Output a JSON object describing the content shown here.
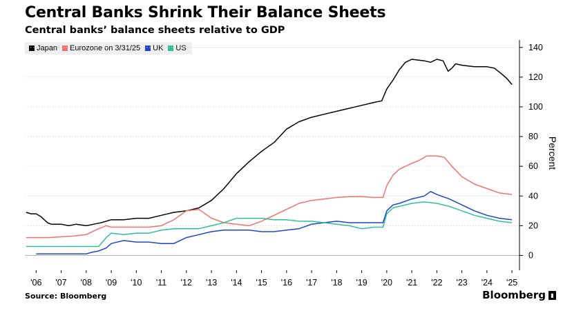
{
  "chart_data": {
    "type": "line",
    "title": "Central Banks Shrink Their Balance Sheets",
    "subtitle": "Central banks’ balance sheets relative to GDP",
    "ylabel": "Percent",
    "xlabel": "",
    "ylim": [
      -10,
      145
    ],
    "yticks": [
      0,
      20,
      40,
      60,
      80,
      100,
      120,
      140
    ],
    "xlim": [
      2005.55,
      2025.3
    ],
    "xticks": [
      {
        "label": "'06",
        "x": 2006.0
      },
      {
        "label": "'07",
        "x": 2007.0
      },
      {
        "label": "'08",
        "x": 2008.0
      },
      {
        "label": "'09",
        "x": 2009.0
      },
      {
        "label": "'10",
        "x": 2010.0
      },
      {
        "label": "'11",
        "x": 2011.0
      },
      {
        "label": "'12",
        "x": 2012.0
      },
      {
        "label": "'13",
        "x": 2013.0
      },
      {
        "label": "'14",
        "x": 2014.0
      },
      {
        "label": "'15",
        "x": 2015.0
      },
      {
        "label": "'16",
        "x": 2016.0
      },
      {
        "label": "'17",
        "x": 2017.0
      },
      {
        "label": "'18",
        "x": 2018.0
      },
      {
        "label": "'19",
        "x": 2019.0
      },
      {
        "label": "'20",
        "x": 2020.0
      },
      {
        "label": "'21",
        "x": 2021.0
      },
      {
        "label": "'22",
        "x": 2022.0
      },
      {
        "label": "'23",
        "x": 2023.0
      },
      {
        "label": "'24",
        "x": 2024.0
      },
      {
        "label": "'25",
        "x": 2025.0
      }
    ],
    "grid": true,
    "legend_position": "top-left",
    "source": "Source: Bloomberg",
    "brand": "Bloomberg",
    "series": [
      {
        "name": "Japan",
        "color": "#000000",
        "points": [
          [
            2005.6,
            29
          ],
          [
            2005.8,
            28
          ],
          [
            2006.0,
            28
          ],
          [
            2006.2,
            26
          ],
          [
            2006.45,
            22
          ],
          [
            2006.6,
            21
          ],
          [
            2007.0,
            21
          ],
          [
            2007.3,
            20
          ],
          [
            2007.6,
            21
          ],
          [
            2008.0,
            20
          ],
          [
            2008.3,
            21
          ],
          [
            2008.6,
            22
          ],
          [
            2009.0,
            24
          ],
          [
            2009.5,
            24
          ],
          [
            2010.0,
            25
          ],
          [
            2010.5,
            25
          ],
          [
            2011.0,
            27
          ],
          [
            2011.5,
            29
          ],
          [
            2012.0,
            30
          ],
          [
            2012.5,
            32
          ],
          [
            2013.0,
            37
          ],
          [
            2013.5,
            45
          ],
          [
            2014.0,
            55
          ],
          [
            2014.5,
            63
          ],
          [
            2015.0,
            70
          ],
          [
            2015.5,
            76
          ],
          [
            2016.0,
            85
          ],
          [
            2016.5,
            90
          ],
          [
            2017.0,
            93
          ],
          [
            2017.5,
            95
          ],
          [
            2018.0,
            97
          ],
          [
            2018.5,
            99
          ],
          [
            2019.0,
            101
          ],
          [
            2019.5,
            103
          ],
          [
            2019.8,
            104
          ],
          [
            2020.0,
            112
          ],
          [
            2020.25,
            118
          ],
          [
            2020.5,
            125
          ],
          [
            2020.75,
            130
          ],
          [
            2021.0,
            132
          ],
          [
            2021.5,
            131
          ],
          [
            2021.75,
            130
          ],
          [
            2022.0,
            132
          ],
          [
            2022.25,
            131
          ],
          [
            2022.45,
            124
          ],
          [
            2022.6,
            126
          ],
          [
            2022.75,
            129
          ],
          [
            2023.0,
            128
          ],
          [
            2023.5,
            127
          ],
          [
            2024.0,
            127
          ],
          [
            2024.3,
            126
          ],
          [
            2024.6,
            122
          ],
          [
            2024.8,
            119
          ],
          [
            2025.0,
            115
          ]
        ]
      },
      {
        "name": "Eurozone on 3/31/25",
        "color": "#f0736b",
        "points": [
          [
            2005.6,
            12
          ],
          [
            2006.0,
            12
          ],
          [
            2006.5,
            12
          ],
          [
            2007.0,
            12.5
          ],
          [
            2007.5,
            13
          ],
          [
            2008.0,
            14
          ],
          [
            2008.5,
            18
          ],
          [
            2008.8,
            20
          ],
          [
            2009.0,
            19
          ],
          [
            2009.5,
            19
          ],
          [
            2010.0,
            19
          ],
          [
            2010.5,
            19
          ],
          [
            2011.0,
            20
          ],
          [
            2011.5,
            24
          ],
          [
            2012.0,
            30
          ],
          [
            2012.5,
            31
          ],
          [
            2013.0,
            25
          ],
          [
            2013.5,
            22
          ],
          [
            2014.0,
            21
          ],
          [
            2014.5,
            20
          ],
          [
            2015.0,
            23
          ],
          [
            2015.5,
            27
          ],
          [
            2016.0,
            31
          ],
          [
            2016.5,
            35
          ],
          [
            2017.0,
            37
          ],
          [
            2017.5,
            38
          ],
          [
            2018.0,
            39
          ],
          [
            2018.5,
            39.5
          ],
          [
            2019.0,
            39.5
          ],
          [
            2019.5,
            39
          ],
          [
            2019.85,
            39
          ],
          [
            2020.0,
            47
          ],
          [
            2020.25,
            54
          ],
          [
            2020.5,
            58
          ],
          [
            2021.0,
            62
          ],
          [
            2021.3,
            64
          ],
          [
            2021.6,
            67
          ],
          [
            2022.0,
            67
          ],
          [
            2022.3,
            66
          ],
          [
            2022.6,
            60
          ],
          [
            2023.0,
            53
          ],
          [
            2023.5,
            48
          ],
          [
            2024.0,
            45
          ],
          [
            2024.5,
            42
          ],
          [
            2025.0,
            41
          ]
        ]
      },
      {
        "name": "UK",
        "color": "#2043c6",
        "points": [
          [
            2006.0,
            1
          ],
          [
            2006.5,
            1
          ],
          [
            2007.0,
            1
          ],
          [
            2007.5,
            1
          ],
          [
            2008.0,
            1
          ],
          [
            2008.2,
            2
          ],
          [
            2008.5,
            3
          ],
          [
            2008.8,
            5
          ],
          [
            2009.0,
            8
          ],
          [
            2009.5,
            10
          ],
          [
            2010.0,
            9
          ],
          [
            2010.5,
            9
          ],
          [
            2011.0,
            8
          ],
          [
            2011.5,
            8
          ],
          [
            2012.0,
            12
          ],
          [
            2012.5,
            14
          ],
          [
            2013.0,
            16
          ],
          [
            2013.5,
            17
          ],
          [
            2014.0,
            17
          ],
          [
            2014.5,
            17
          ],
          [
            2015.0,
            16
          ],
          [
            2015.5,
            16
          ],
          [
            2016.0,
            17
          ],
          [
            2016.5,
            18
          ],
          [
            2017.0,
            21
          ],
          [
            2017.5,
            22
          ],
          [
            2018.0,
            23
          ],
          [
            2018.5,
            22
          ],
          [
            2019.0,
            22
          ],
          [
            2019.5,
            22
          ],
          [
            2019.85,
            22
          ],
          [
            2020.0,
            30
          ],
          [
            2020.25,
            34
          ],
          [
            2020.5,
            35
          ],
          [
            2021.0,
            38
          ],
          [
            2021.5,
            40
          ],
          [
            2021.75,
            43
          ],
          [
            2022.0,
            41
          ],
          [
            2022.5,
            38
          ],
          [
            2023.0,
            34
          ],
          [
            2023.5,
            30
          ],
          [
            2024.0,
            27
          ],
          [
            2024.5,
            25
          ],
          [
            2025.0,
            24
          ]
        ]
      },
      {
        "name": "US",
        "color": "#2bbf9a",
        "points": [
          [
            2005.6,
            6
          ],
          [
            2006.0,
            6
          ],
          [
            2006.5,
            6
          ],
          [
            2007.0,
            6
          ],
          [
            2007.5,
            6
          ],
          [
            2008.0,
            6
          ],
          [
            2008.5,
            6
          ],
          [
            2008.8,
            12
          ],
          [
            2009.0,
            15
          ],
          [
            2009.5,
            14
          ],
          [
            2010.0,
            15
          ],
          [
            2010.5,
            15
          ],
          [
            2011.0,
            17
          ],
          [
            2011.5,
            18
          ],
          [
            2012.0,
            18
          ],
          [
            2012.5,
            18
          ],
          [
            2013.0,
            20
          ],
          [
            2013.5,
            22
          ],
          [
            2014.0,
            25
          ],
          [
            2014.5,
            25
          ],
          [
            2015.0,
            25
          ],
          [
            2015.5,
            24
          ],
          [
            2016.0,
            24
          ],
          [
            2016.5,
            23
          ],
          [
            2017.0,
            23
          ],
          [
            2017.5,
            22
          ],
          [
            2018.0,
            21
          ],
          [
            2018.5,
            20
          ],
          [
            2019.0,
            18
          ],
          [
            2019.5,
            19
          ],
          [
            2019.85,
            19
          ],
          [
            2020.0,
            28
          ],
          [
            2020.25,
            32
          ],
          [
            2020.5,
            33
          ],
          [
            2021.0,
            35
          ],
          [
            2021.5,
            36
          ],
          [
            2022.0,
            35
          ],
          [
            2022.5,
            33
          ],
          [
            2023.0,
            30
          ],
          [
            2023.5,
            27
          ],
          [
            2024.0,
            25
          ],
          [
            2024.5,
            23
          ],
          [
            2025.0,
            22
          ]
        ]
      }
    ]
  }
}
